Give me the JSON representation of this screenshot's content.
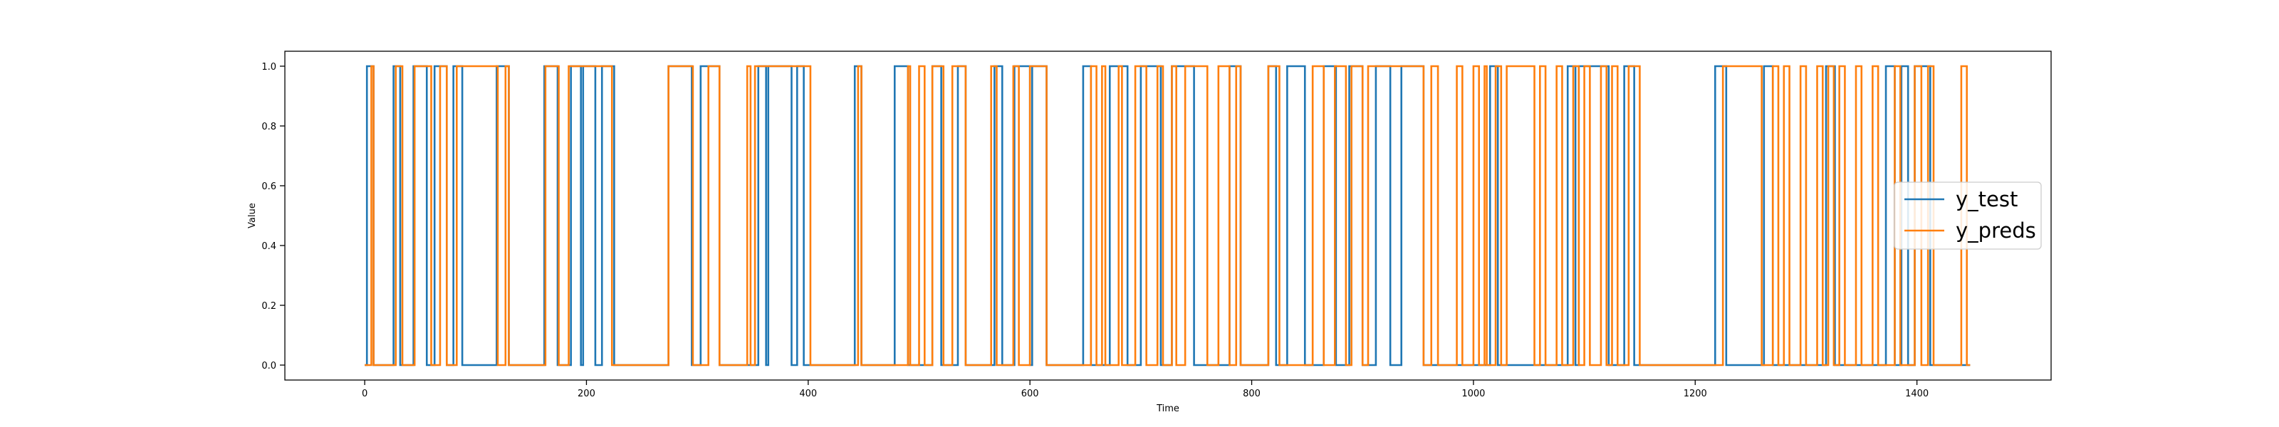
{
  "chart_data": {
    "type": "line",
    "title": "",
    "xlabel": "Time",
    "ylabel": "Value",
    "xlim": [
      -72,
      1521
    ],
    "ylim": [
      -0.05,
      1.05
    ],
    "xticks": [
      0,
      200,
      400,
      600,
      800,
      1000,
      1200,
      1400
    ],
    "yticks": [
      "0.0",
      "0.2",
      "0.4",
      "0.6",
      "0.8",
      "1.0"
    ],
    "grid": false,
    "legend_position": "center-right",
    "series": [
      {
        "name": "y_test",
        "color": "#1f77b4",
        "high_intervals": [
          [
            2,
            8
          ],
          [
            26,
            32
          ],
          [
            44,
            56
          ],
          [
            63,
            74
          ],
          [
            80,
            88
          ],
          [
            119,
            130
          ],
          [
            162,
            174
          ],
          [
            186,
            195
          ],
          [
            197,
            208
          ],
          [
            214,
            225
          ],
          [
            274,
            295
          ],
          [
            303,
            320
          ],
          [
            355,
            362
          ],
          [
            364,
            385
          ],
          [
            390,
            396
          ],
          [
            442,
            448
          ],
          [
            478,
            490
          ],
          [
            512,
            520
          ],
          [
            535,
            542
          ],
          [
            568,
            575
          ],
          [
            586,
            600
          ],
          [
            602,
            615
          ],
          [
            648,
            655
          ],
          [
            672,
            688
          ],
          [
            700,
            718
          ],
          [
            728,
            748
          ],
          [
            780,
            790
          ],
          [
            815,
            822
          ],
          [
            832,
            848
          ],
          [
            865,
            876
          ],
          [
            888,
            900
          ],
          [
            912,
            925
          ],
          [
            935,
            955
          ],
          [
            1015,
            1022
          ],
          [
            1085,
            1092
          ],
          [
            1095,
            1122
          ],
          [
            1136,
            1145
          ],
          [
            1218,
            1228
          ],
          [
            1262,
            1270
          ],
          [
            1318,
            1326
          ],
          [
            1372,
            1380
          ],
          [
            1386,
            1392
          ],
          [
            1398,
            1412
          ]
        ]
      },
      {
        "name": "y_preds",
        "color": "#ff7f0e",
        "high_intervals": [
          [
            6,
            8
          ],
          [
            28,
            34
          ],
          [
            45,
            60
          ],
          [
            68,
            74
          ],
          [
            83,
            120
          ],
          [
            127,
            130
          ],
          [
            163,
            175
          ],
          [
            184,
            223
          ],
          [
            274,
            296
          ],
          [
            310,
            320
          ],
          [
            345,
            348
          ],
          [
            352,
            402
          ],
          [
            445,
            448
          ],
          [
            490,
            492
          ],
          [
            500,
            505
          ],
          [
            512,
            522
          ],
          [
            530,
            542
          ],
          [
            565,
            570
          ],
          [
            585,
            590
          ],
          [
            600,
            615
          ],
          [
            655,
            660
          ],
          [
            665,
            668
          ],
          [
            680,
            683
          ],
          [
            695,
            705
          ],
          [
            715,
            720
          ],
          [
            728,
            732
          ],
          [
            740,
            760
          ],
          [
            770,
            780
          ],
          [
            786,
            790
          ],
          [
            815,
            825
          ],
          [
            855,
            865
          ],
          [
            875,
            885
          ],
          [
            890,
            900
          ],
          [
            905,
            955
          ],
          [
            962,
            968
          ],
          [
            985,
            990
          ],
          [
            1000,
            1005
          ],
          [
            1010,
            1012
          ],
          [
            1020,
            1025
          ],
          [
            1030,
            1055
          ],
          [
            1060,
            1065
          ],
          [
            1075,
            1080
          ],
          [
            1090,
            1095
          ],
          [
            1100,
            1105
          ],
          [
            1115,
            1120
          ],
          [
            1125,
            1130
          ],
          [
            1140,
            1150
          ],
          [
            1225,
            1260
          ],
          [
            1270,
            1275
          ],
          [
            1280,
            1285
          ],
          [
            1295,
            1300
          ],
          [
            1310,
            1315
          ],
          [
            1320,
            1325
          ],
          [
            1330,
            1335
          ],
          [
            1345,
            1350
          ],
          [
            1360,
            1365
          ],
          [
            1380,
            1385
          ],
          [
            1398,
            1404
          ],
          [
            1410,
            1415
          ],
          [
            1440,
            1445
          ]
        ]
      }
    ],
    "x_end": 1448
  }
}
